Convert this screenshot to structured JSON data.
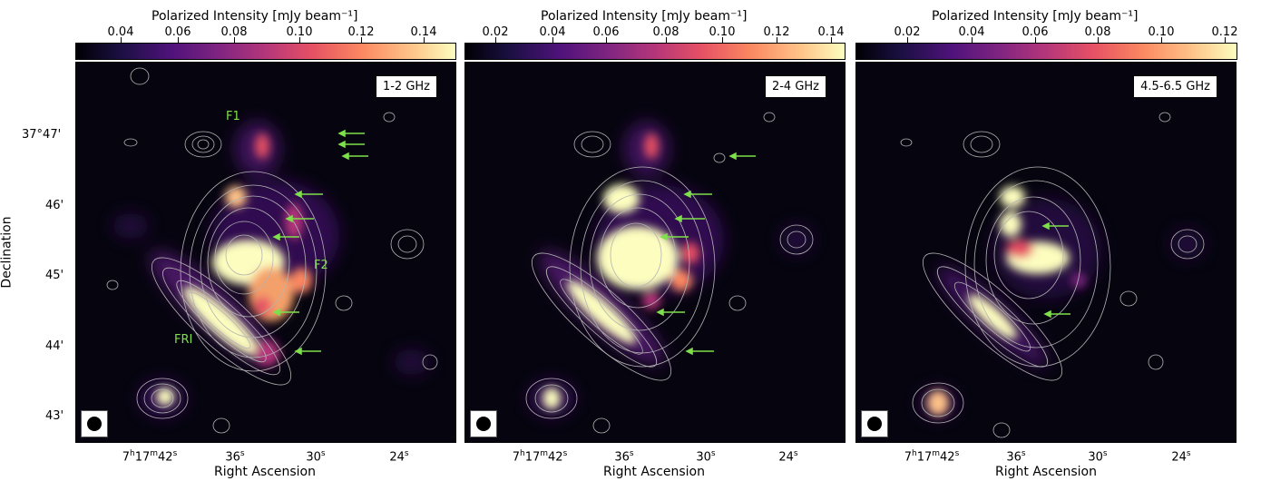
{
  "figure": {
    "y_axis_label": "Declination",
    "y_ticks": [
      "37°47'",
      "46'",
      "45'",
      "44'",
      "43'"
    ],
    "x_ticks": [
      "7h17m42s",
      "36s",
      "30s",
      "24s"
    ],
    "x_axis_label": "Right Ascension",
    "source_labels": {
      "f1": "F1",
      "f2": "F2",
      "fri": "FRI"
    }
  },
  "panels": [
    {
      "colorbar_title": "Polarized Intensity [mJy beam⁻¹]",
      "colorbar_ticks": [
        "0.04",
        "0.06",
        "0.08",
        "0.10",
        "0.12",
        "0.14"
      ],
      "frequency": "1-2 GHz"
    },
    {
      "colorbar_title": "Polarized Intensity [mJy beam⁻¹]",
      "colorbar_ticks": [
        "0.02",
        "0.04",
        "0.06",
        "0.08",
        "0.10",
        "0.12",
        "0.14"
      ],
      "frequency": "2-4 GHz"
    },
    {
      "colorbar_title": "Polarized Intensity [mJy beam⁻¹]",
      "colorbar_ticks": [
        "0.02",
        "0.04",
        "0.06",
        "0.08",
        "0.10",
        "0.12"
      ],
      "frequency": "4.5-6.5 GHz"
    }
  ],
  "colors": {
    "arrow": "#7ee04a",
    "contour": "#b4b4b4",
    "background": "#06050f"
  }
}
